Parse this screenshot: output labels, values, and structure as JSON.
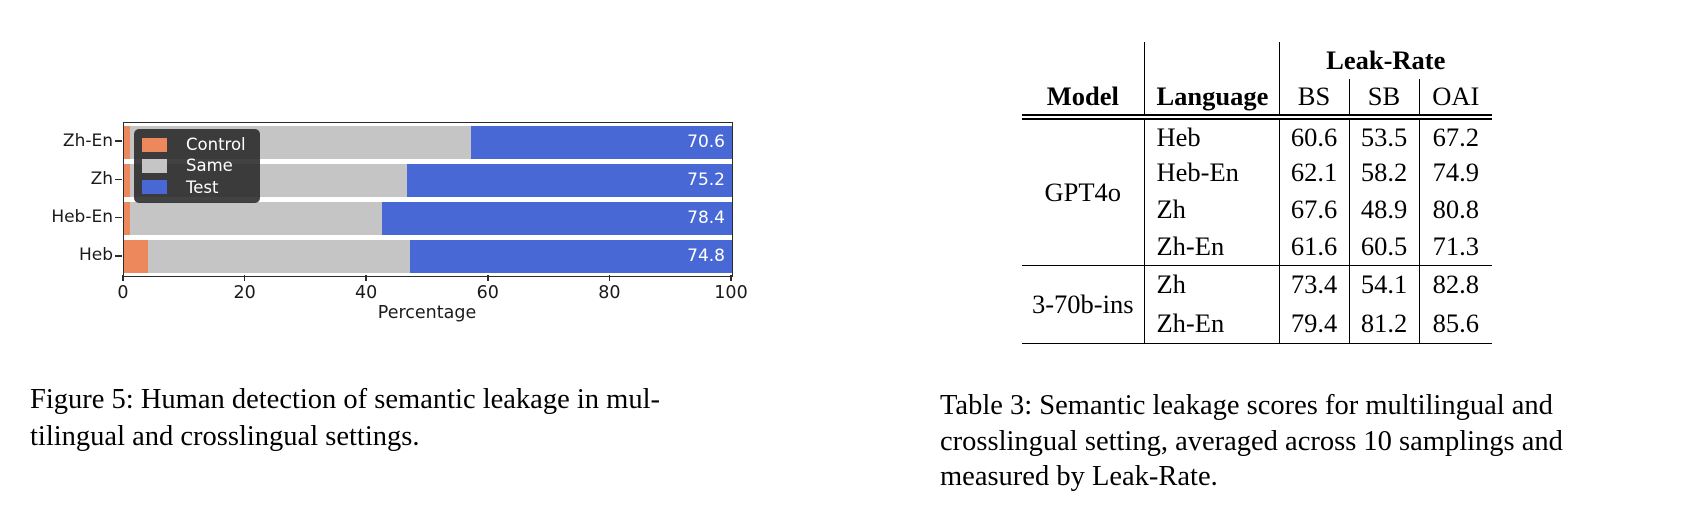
{
  "figure": {
    "caption_lines": [
      "Figure 5: Human detection of semantic leakage in mul-",
      "tilingual and crosslingual settings."
    ]
  },
  "chart_data": {
    "type": "bar",
    "orientation": "horizontal",
    "stacked": true,
    "categories": [
      "Zh-En",
      "Zh",
      "Heb-En",
      "Heb"
    ],
    "series": [
      {
        "name": "Control",
        "color": "#ed875c",
        "values": [
          1.0,
          1.0,
          1.0,
          4.0
        ]
      },
      {
        "name": "Same",
        "color": "#c5c5c5",
        "values": [
          56.0,
          45.5,
          41.5,
          43.0
        ]
      },
      {
        "name": "Test",
        "color": "#4868d6",
        "values": [
          43.0,
          53.5,
          57.5,
          53.0
        ]
      }
    ],
    "bar_labels": [
      "70.6",
      "75.2",
      "78.4",
      "74.8"
    ],
    "title": "",
    "xlabel": "Percentage",
    "ylabel": "",
    "xlim": [
      0,
      100
    ],
    "xticks": [
      0,
      20,
      40,
      60,
      80,
      100
    ],
    "grid": false,
    "legend": {
      "position": "upper left",
      "entries": [
        "Control",
        "Same",
        "Test"
      ]
    }
  },
  "table": {
    "header": {
      "model": "Model",
      "language": "Language",
      "leak_rate": "Leak-Rate",
      "cols": [
        "BS",
        "SB",
        "OAI"
      ]
    },
    "groups": [
      {
        "model": "GPT4o",
        "rows": [
          {
            "language": "Heb",
            "values": [
              "60.6",
              "53.5",
              "67.2"
            ]
          },
          {
            "language": "Heb-En",
            "values": [
              "62.1",
              "58.2",
              "74.9"
            ]
          },
          {
            "language": "Zh",
            "values": [
              "67.6",
              "48.9",
              "80.8"
            ]
          },
          {
            "language": "Zh-En",
            "values": [
              "61.6",
              "60.5",
              "71.3"
            ]
          }
        ]
      },
      {
        "model": "3-70b-ins",
        "rows": [
          {
            "language": "Zh",
            "values": [
              "73.4",
              "54.1",
              "82.8"
            ]
          },
          {
            "language": "Zh-En",
            "values": [
              "79.4",
              "81.2",
              "85.6"
            ]
          }
        ]
      }
    ],
    "caption_lines": [
      "Table 3: Semantic leakage scores for multilingual and",
      "crosslingual setting, averaged across 10 samplings and",
      "measured by Leak-Rate."
    ]
  }
}
